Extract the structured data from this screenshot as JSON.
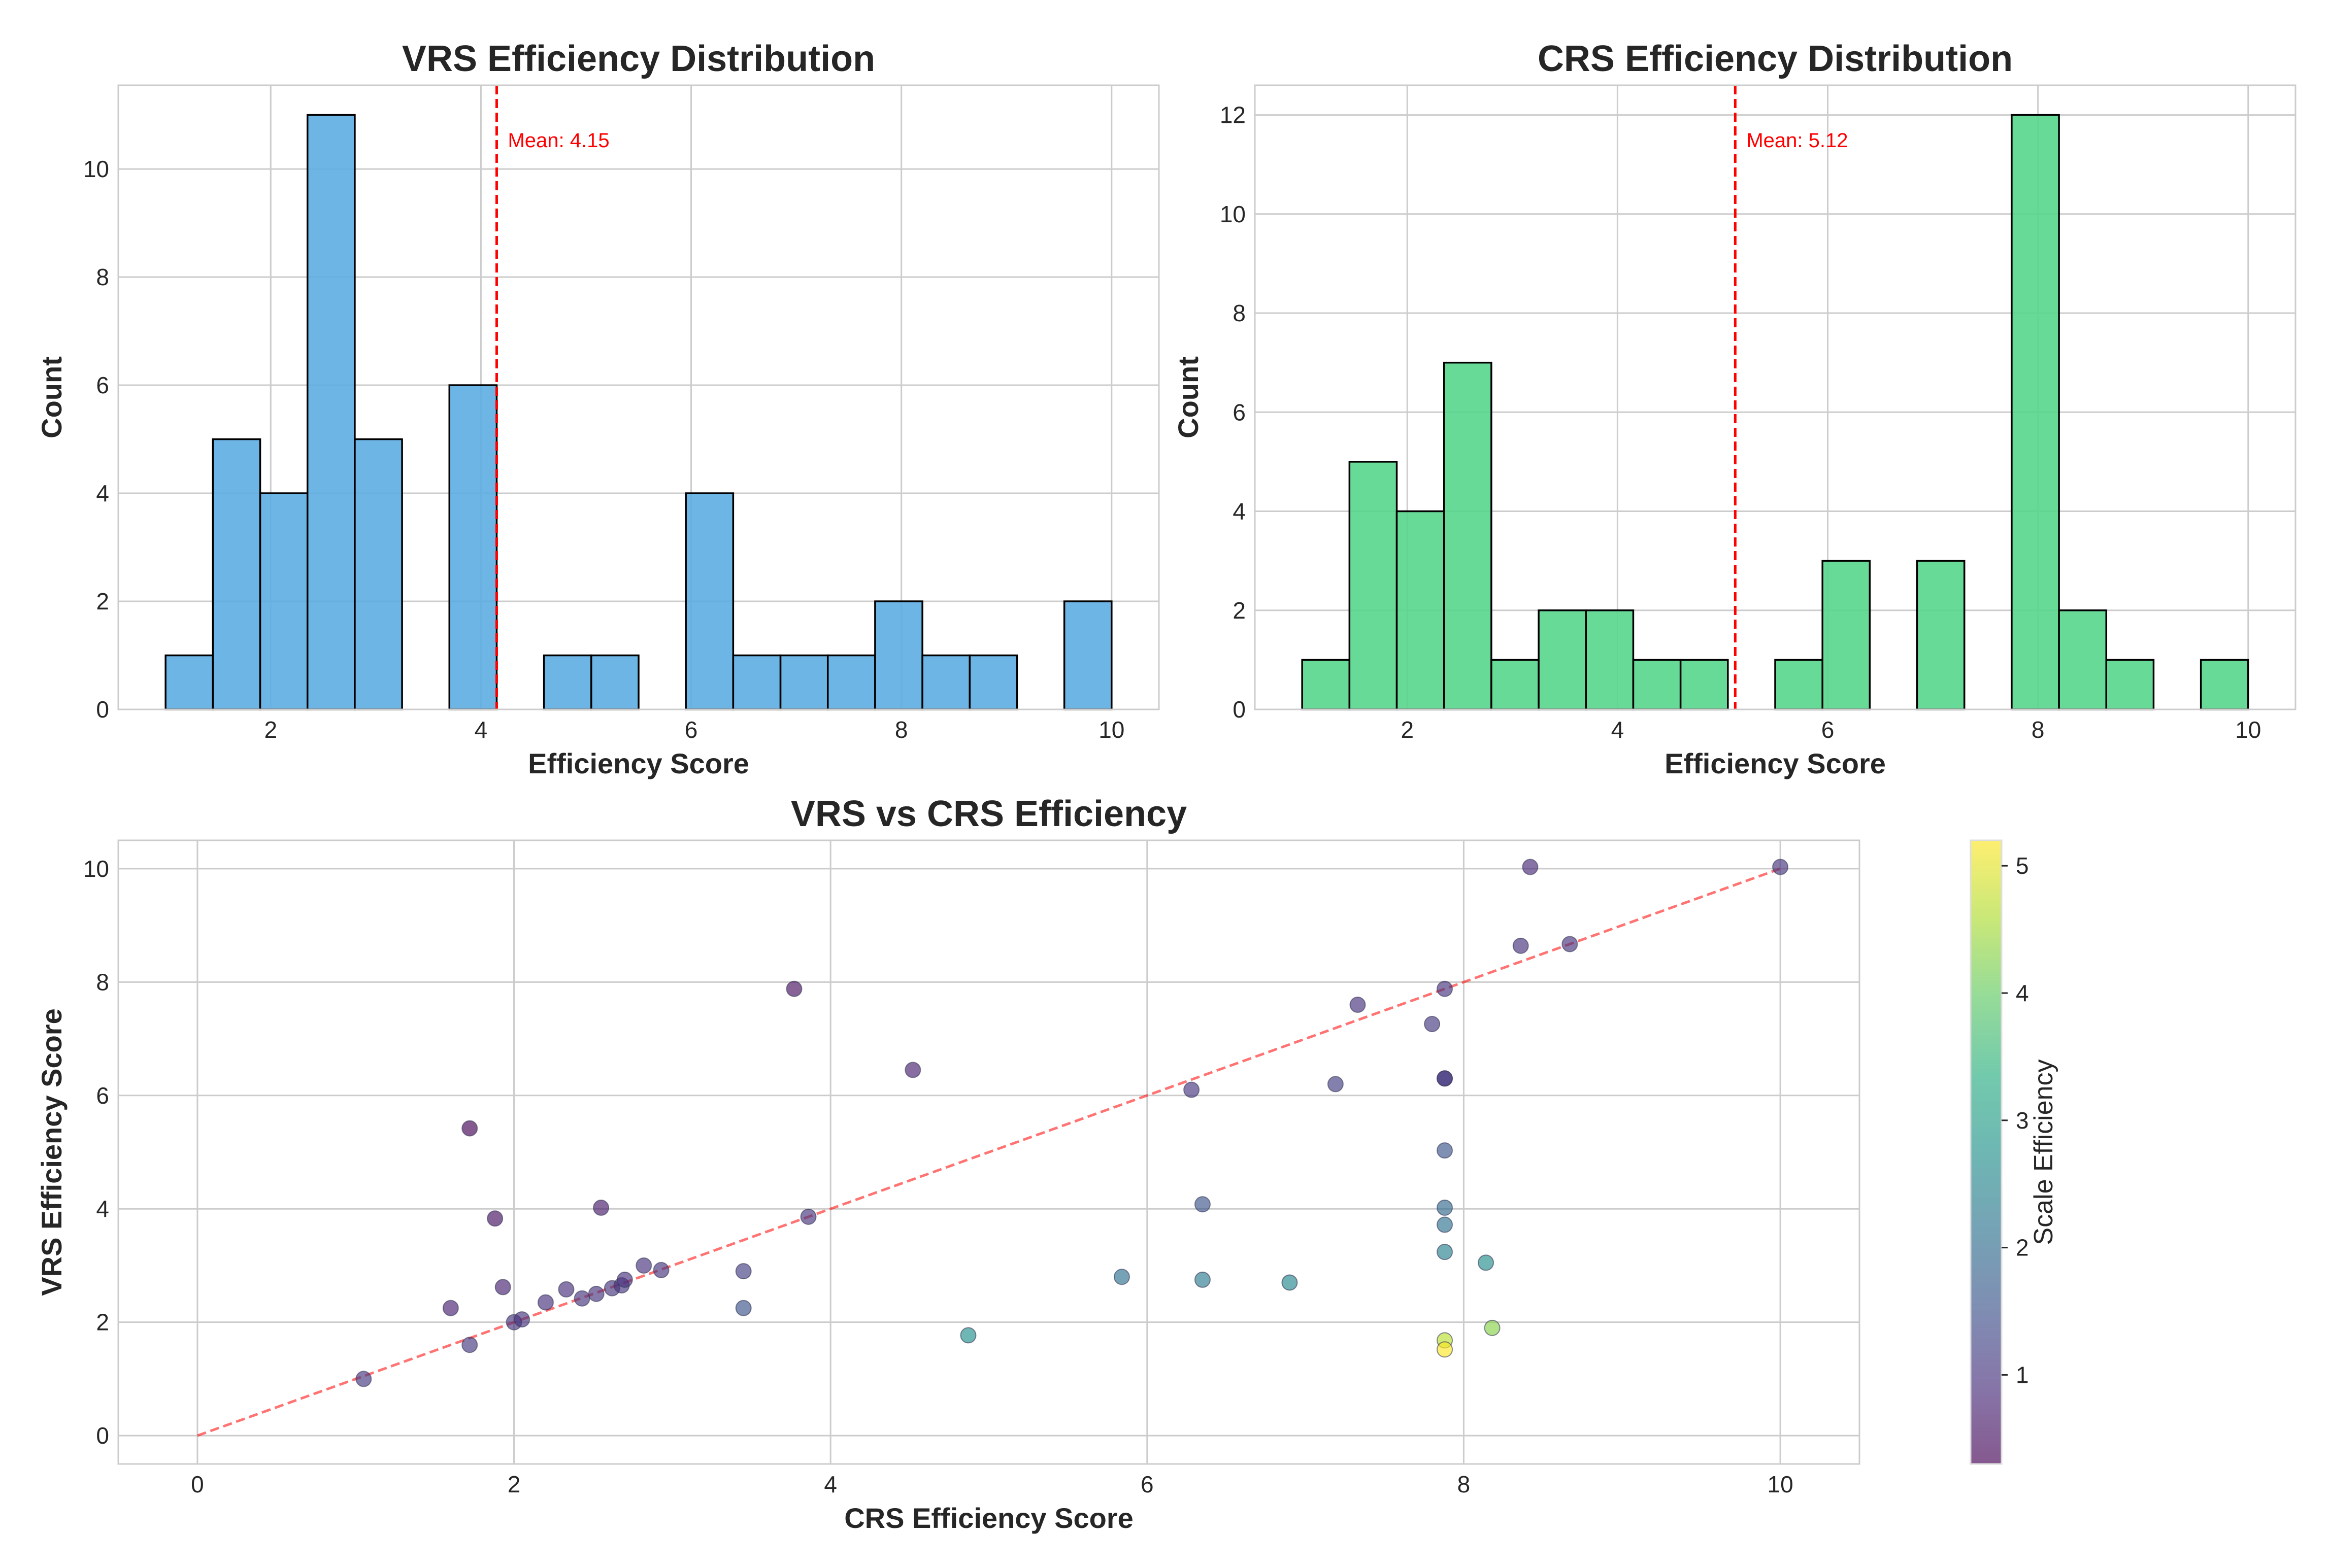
{
  "chart_data": [
    {
      "type": "bar",
      "title": "VRS Efficiency Distribution",
      "xlabel": "Efficiency Score",
      "ylabel": "Count",
      "xlim": [
        0.55,
        10.45
      ],
      "ylim": [
        0,
        11.55
      ],
      "xticks": [
        2,
        4,
        6,
        8,
        10
      ],
      "yticks": [
        0,
        2,
        4,
        6,
        8,
        10
      ],
      "color": "#5DADE2",
      "bin_width": 0.45,
      "bins": [
        {
          "start": 1.0,
          "count": 1
        },
        {
          "start": 1.45,
          "count": 5
        },
        {
          "start": 1.9,
          "count": 4
        },
        {
          "start": 2.35,
          "count": 11
        },
        {
          "start": 2.8,
          "count": 5
        },
        {
          "start": 3.25,
          "count": 0
        },
        {
          "start": 3.7,
          "count": 6
        },
        {
          "start": 4.15,
          "count": 0
        },
        {
          "start": 4.6,
          "count": 1
        },
        {
          "start": 5.05,
          "count": 1
        },
        {
          "start": 5.5,
          "count": 0
        },
        {
          "start": 5.95,
          "count": 4
        },
        {
          "start": 6.4,
          "count": 1
        },
        {
          "start": 6.85,
          "count": 1
        },
        {
          "start": 7.3,
          "count": 1
        },
        {
          "start": 7.75,
          "count": 2
        },
        {
          "start": 8.2,
          "count": 1
        },
        {
          "start": 8.65,
          "count": 1
        },
        {
          "start": 9.1,
          "count": 0
        },
        {
          "start": 9.55,
          "count": 2
        }
      ],
      "mean": 4.15,
      "mean_label": "Mean: 4.15",
      "mean_color": "#ff0000",
      "grid": true
    },
    {
      "type": "bar",
      "title": "CRS Efficiency Distribution",
      "xlabel": "Efficiency Score",
      "ylabel": "Count",
      "xlim": [
        0.55,
        10.45
      ],
      "ylim": [
        0,
        12.6
      ],
      "xticks": [
        2,
        4,
        6,
        8,
        10
      ],
      "yticks": [
        0,
        2,
        4,
        6,
        8,
        10,
        12
      ],
      "color": "#58D68D",
      "bin_width": 0.45,
      "bins": [
        {
          "start": 1.0,
          "count": 1
        },
        {
          "start": 1.45,
          "count": 5
        },
        {
          "start": 1.9,
          "count": 4
        },
        {
          "start": 2.35,
          "count": 7
        },
        {
          "start": 2.8,
          "count": 1
        },
        {
          "start": 3.25,
          "count": 2
        },
        {
          "start": 3.7,
          "count": 2
        },
        {
          "start": 4.15,
          "count": 1
        },
        {
          "start": 4.6,
          "count": 1
        },
        {
          "start": 5.05,
          "count": 0
        },
        {
          "start": 5.5,
          "count": 1
        },
        {
          "start": 5.95,
          "count": 3
        },
        {
          "start": 6.4,
          "count": 0
        },
        {
          "start": 6.85,
          "count": 3
        },
        {
          "start": 7.3,
          "count": 0
        },
        {
          "start": 7.75,
          "count": 12
        },
        {
          "start": 8.2,
          "count": 2
        },
        {
          "start": 8.65,
          "count": 1
        },
        {
          "start": 9.1,
          "count": 0
        },
        {
          "start": 9.55,
          "count": 1
        }
      ],
      "mean": 5.12,
      "mean_label": "Mean: 5.12",
      "mean_color": "#ff0000",
      "grid": true
    },
    {
      "type": "scatter",
      "title": "VRS vs CRS Efficiency",
      "xlabel": "CRS Efficiency Score",
      "ylabel": "VRS Efficiency Score",
      "xlim": [
        -0.5,
        10.5
      ],
      "ylim": [
        -0.5,
        10.5
      ],
      "xticks": [
        0,
        2,
        4,
        6,
        8,
        10
      ],
      "yticks": [
        0,
        2,
        4,
        6,
        8,
        10
      ],
      "reference_line": {
        "from": [
          0,
          0
        ],
        "to": [
          10,
          10
        ],
        "color": "#ff0000",
        "style": "dashed"
      },
      "colorbar": {
        "label": "Scale Efficiency",
        "min": 0.3,
        "max": 5.2,
        "ticks": [
          1,
          2,
          3,
          4,
          5
        ],
        "colormap": "viridis"
      },
      "points": [
        {
          "x": 1.05,
          "y": 1.0,
          "c": 1.05
        },
        {
          "x": 1.6,
          "y": 2.25,
          "c": 0.71
        },
        {
          "x": 1.72,
          "y": 1.6,
          "c": 1.07
        },
        {
          "x": 1.72,
          "y": 5.42,
          "c": 0.32
        },
        {
          "x": 1.88,
          "y": 3.83,
          "c": 0.49
        },
        {
          "x": 1.93,
          "y": 2.62,
          "c": 0.74
        },
        {
          "x": 2.0,
          "y": 2.0,
          "c": 1.0
        },
        {
          "x": 2.05,
          "y": 2.05,
          "c": 1.0
        },
        {
          "x": 2.2,
          "y": 2.35,
          "c": 0.94
        },
        {
          "x": 2.33,
          "y": 2.58,
          "c": 0.9
        },
        {
          "x": 2.43,
          "y": 2.42,
          "c": 1.0
        },
        {
          "x": 2.52,
          "y": 2.5,
          "c": 1.0
        },
        {
          "x": 2.55,
          "y": 4.02,
          "c": 0.63
        },
        {
          "x": 2.62,
          "y": 2.6,
          "c": 1.0
        },
        {
          "x": 2.68,
          "y": 2.65,
          "c": 1.0
        },
        {
          "x": 2.7,
          "y": 2.75,
          "c": 0.98
        },
        {
          "x": 2.82,
          "y": 3.0,
          "c": 0.94
        },
        {
          "x": 2.93,
          "y": 2.92,
          "c": 1.0
        },
        {
          "x": 3.45,
          "y": 2.9,
          "c": 1.19
        },
        {
          "x": 3.45,
          "y": 2.25,
          "c": 1.53
        },
        {
          "x": 3.77,
          "y": 7.88,
          "c": 0.48
        },
        {
          "x": 3.86,
          "y": 3.86,
          "c": 1.0
        },
        {
          "x": 4.52,
          "y": 6.45,
          "c": 0.7
        },
        {
          "x": 4.87,
          "y": 1.77,
          "c": 2.75
        },
        {
          "x": 5.84,
          "y": 2.8,
          "c": 2.09
        },
        {
          "x": 6.28,
          "y": 6.1,
          "c": 1.03
        },
        {
          "x": 6.35,
          "y": 4.08,
          "c": 1.56
        },
        {
          "x": 6.35,
          "y": 2.75,
          "c": 2.31
        },
        {
          "x": 6.9,
          "y": 2.7,
          "c": 2.56
        },
        {
          "x": 7.19,
          "y": 6.2,
          "c": 1.16
        },
        {
          "x": 7.33,
          "y": 7.6,
          "c": 0.96
        },
        {
          "x": 7.8,
          "y": 7.26,
          "c": 1.07
        },
        {
          "x": 7.88,
          "y": 7.88,
          "c": 1.0
        },
        {
          "x": 7.88,
          "y": 6.3,
          "c": 0.62
        },
        {
          "x": 7.88,
          "y": 6.3,
          "c": 1.25
        },
        {
          "x": 7.88,
          "y": 5.03,
          "c": 1.57
        },
        {
          "x": 7.88,
          "y": 4.02,
          "c": 1.96
        },
        {
          "x": 7.88,
          "y": 3.72,
          "c": 2.12
        },
        {
          "x": 7.88,
          "y": 3.24,
          "c": 2.43
        },
        {
          "x": 7.88,
          "y": 1.68,
          "c": 4.69
        },
        {
          "x": 7.88,
          "y": 1.52,
          "c": 5.18
        },
        {
          "x": 8.14,
          "y": 3.05,
          "c": 2.67
        },
        {
          "x": 8.18,
          "y": 1.9,
          "c": 4.3
        },
        {
          "x": 8.36,
          "y": 8.64,
          "c": 0.97
        },
        {
          "x": 8.42,
          "y": 10.03,
          "c": 0.84
        },
        {
          "x": 8.67,
          "y": 8.67,
          "c": 1.0
        },
        {
          "x": 10.0,
          "y": 10.03,
          "c": 1.0
        }
      ],
      "grid": true
    }
  ]
}
